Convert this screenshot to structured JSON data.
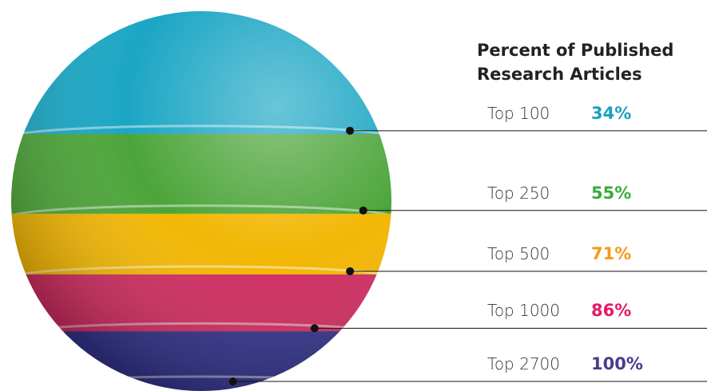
{
  "chart_data": {
    "type": "layered-sphere",
    "title": "Percent of Published Research Articles",
    "categories": [
      "Top 100",
      "Top 250",
      "Top 500",
      "Top 1000",
      "Top 2700"
    ],
    "values": [
      34,
      55,
      71,
      86,
      100
    ],
    "value_labels": [
      "34%",
      "55%",
      "71%",
      "86%",
      "100%"
    ],
    "colors": [
      "#1ba6c4",
      "#4da53a",
      "#f2b705",
      "#cf2e62",
      "#33338a"
    ],
    "label_colors": [
      "#1a9fc0",
      "#3aab3a",
      "#f39a1a",
      "#e5196a",
      "#4b3a8c"
    ]
  }
}
